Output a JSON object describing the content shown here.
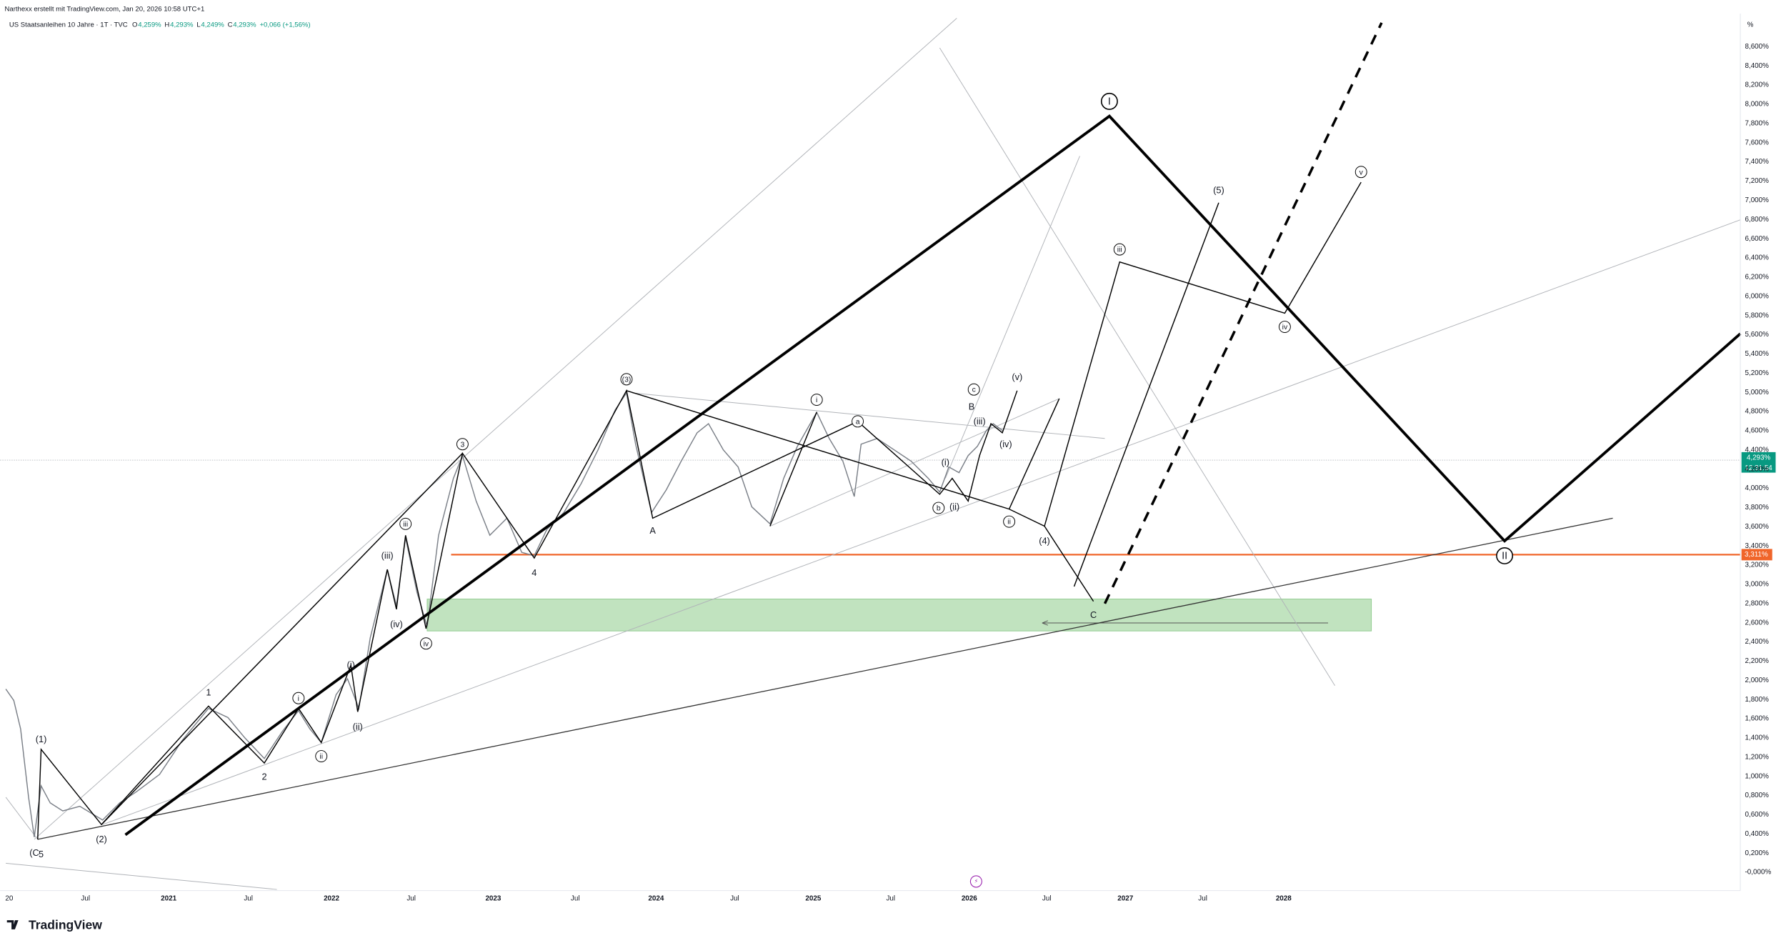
{
  "header": {
    "author_line": "Narthexx erstellt mit TradingView.com, Jan 20, 2026 10:58 UTC+1",
    "symbol": "US Staatsanleihen 10 Jahre · 1T · TVC",
    "ohlc": [
      {
        "key": "O",
        "value": "4,259%"
      },
      {
        "key": "H",
        "value": "4,293%"
      },
      {
        "key": "L",
        "value": "4,249%"
      },
      {
        "key": "C",
        "value": "4,293%"
      }
    ],
    "change": "+0,066 (+1,56%)"
  },
  "price_axis": {
    "unit": "%",
    "labels": [
      "8,600%",
      "8,400%",
      "8,200%",
      "8,000%",
      "7,800%",
      "7,600%",
      "7,400%",
      "7,200%",
      "7,000%",
      "6,800%",
      "6,600%",
      "6,400%",
      "6,200%",
      "6,000%",
      "5,800%",
      "5,600%",
      "5,400%",
      "5,200%",
      "5,000%",
      "4,800%",
      "4,600%",
      "4,400%",
      "4,200%",
      "4,000%",
      "3,800%",
      "3,600%",
      "3,400%",
      "3,200%",
      "3,000%",
      "2,800%",
      "2,600%",
      "2,400%",
      "2,200%",
      "2,000%",
      "1,800%",
      "1,600%",
      "1,400%",
      "1,200%",
      "1,000%",
      "0,800%",
      "0,600%",
      "0,400%",
      "0,200%",
      "-0,000%"
    ],
    "last_price": "4,293%",
    "countdown": "12:31:54",
    "level_price": "3,311%"
  },
  "time_axis": [
    "20",
    "Jul",
    "2021",
    "Jul",
    "2022",
    "Jul",
    "2023",
    "Jul",
    "2024",
    "Jul",
    "2025",
    "Jul",
    "2026",
    "Jul",
    "2027",
    "Jul",
    "2028"
  ],
  "wave_labels": [
    {
      "text": "(1)",
      "circled": false
    },
    {
      "text": "(2)",
      "circled": false
    },
    {
      "text": "(C",
      "circled": false
    },
    {
      "text": "5",
      "circled": false
    },
    {
      "text": "1",
      "circled": false
    },
    {
      "text": "2",
      "circled": false
    },
    {
      "text": "i",
      "circled": true
    },
    {
      "text": "ii",
      "circled": true
    },
    {
      "text": "(i)",
      "circled": false
    },
    {
      "text": "(ii)",
      "circled": false
    },
    {
      "text": "(iii)",
      "circled": false
    },
    {
      "text": "(iv)",
      "circled": false
    },
    {
      "text": "iii",
      "circled": true
    },
    {
      "text": "iv",
      "circled": true
    },
    {
      "text": "3",
      "circled": true
    },
    {
      "text": "4",
      "circled": false
    },
    {
      "text": "(3)",
      "circled": true
    },
    {
      "text": "A",
      "circled": false
    },
    {
      "text": "i",
      "circled": true
    },
    {
      "text": "a",
      "circled": true
    },
    {
      "text": "b",
      "circled": true
    },
    {
      "text": "c",
      "circled": true
    },
    {
      "text": "B",
      "circled": false
    },
    {
      "text": "(v)",
      "circled": false
    },
    {
      "text": "(iv)",
      "circled": false
    },
    {
      "text": "(iii)",
      "circled": false
    },
    {
      "text": "(i)",
      "circled": false
    },
    {
      "text": "(ii)",
      "circled": false
    },
    {
      "text": "ii",
      "circled": true
    },
    {
      "text": "(4)",
      "circled": false
    },
    {
      "text": "C",
      "circled": false
    },
    {
      "text": "iii",
      "circled": true
    },
    {
      "text": "(5)",
      "circled": false
    },
    {
      "text": "iv",
      "circled": true
    },
    {
      "text": "v",
      "circled": true
    },
    {
      "text": "I",
      "circled": true
    },
    {
      "text": "II",
      "circled": true
    }
  ],
  "footer": {
    "logo": "TradingView"
  }
}
